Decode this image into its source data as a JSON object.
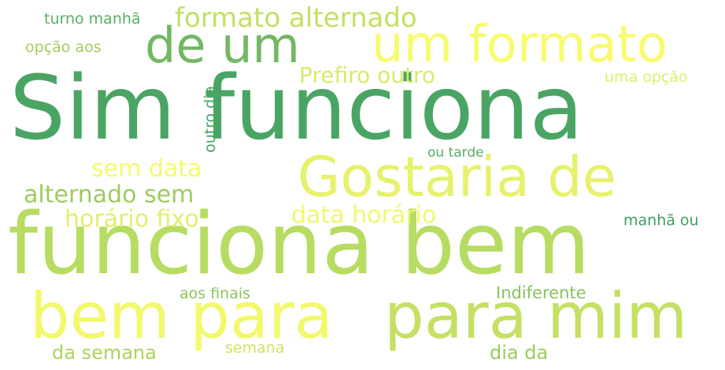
{
  "wordcloud": {
    "words": [
      {
        "id": "w-sim",
        "text": "Sim funciona",
        "color": "#4aa564"
      },
      {
        "id": "w-func-bem",
        "text": "funciona bem",
        "color": "#b7dc62"
      },
      {
        "id": "w-gostaria",
        "text": "Gostaria de",
        "color": "#e6f26c"
      },
      {
        "id": "w-um-fmt",
        "text": "um formato",
        "color": "#f8fb6f"
      },
      {
        "id": "w-de-um",
        "text": "de um",
        "color": "#73b863"
      },
      {
        "id": "w-bem-para",
        "text": "bem para",
        "color": "#f3f86c"
      },
      {
        "id": "w-para-mim",
        "text": "para mim",
        "color": "#c5e062"
      },
      {
        "id": "w-fmt-alt",
        "text": "formato alternado",
        "color": "#c2e063"
      },
      {
        "id": "w-prefiro",
        "text": "Prefiro outro",
        "color": "#d9eb6a"
      },
      {
        "id": "w-sem-data",
        "text": "sem data",
        "color": "#f6f96e"
      },
      {
        "id": "w-alt-sem",
        "text": "alternado sem",
        "color": "#9fcb5e"
      },
      {
        "id": "w-hor-fixo",
        "text": "horário fixo",
        "color": "#e3f06d"
      },
      {
        "id": "w-data-hor",
        "text": "data horário",
        "color": "#f3f86c"
      },
      {
        "id": "w-turno",
        "text": "turno manhã",
        "color": "#5aae64"
      },
      {
        "id": "w-opcao",
        "text": "opção aos",
        "color": "#a5cd5f"
      },
      {
        "id": "w-uma",
        "text": "uma opção",
        "color": "#dfee6b"
      },
      {
        "id": "w-ou-tarde",
        "text": "ou tarde",
        "color": "#5aae64"
      },
      {
        "id": "w-manha",
        "text": "manhã ou",
        "color": "#3e9e62"
      },
      {
        "id": "w-indif",
        "text": "Indiferente",
        "color": "#88c260"
      },
      {
        "id": "w-aos",
        "text": "aos finais",
        "color": "#8cc460"
      },
      {
        "id": "w-da-sem",
        "text": "da semana",
        "color": "#acd25f"
      },
      {
        "id": "w-semana",
        "text": "semana",
        "color": "#cde662"
      },
      {
        "id": "w-dia-da",
        "text": "dia da",
        "color": "#9acb5e"
      },
      {
        "id": "w-outro",
        "text": "outro dia",
        "color": "#4aa564",
        "orientation": "vertical"
      }
    ]
  }
}
